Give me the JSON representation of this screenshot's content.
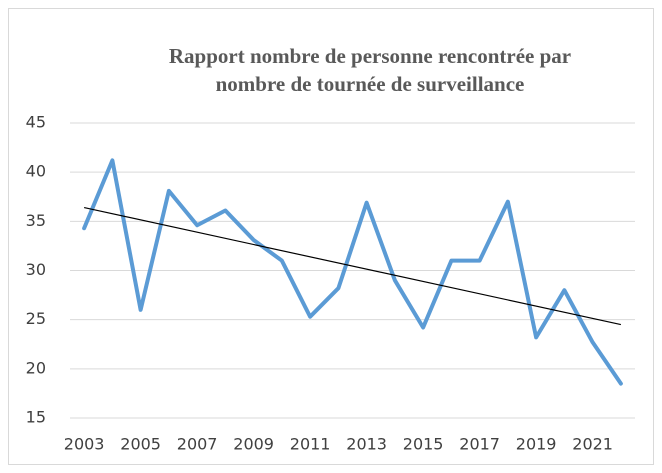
{
  "chart_data": {
    "type": "line",
    "title": [
      "Rapport nombre de personne rencontrée par",
      "nombre de tournée de surveillance"
    ],
    "categories": [
      "2003",
      null,
      "2005",
      null,
      "2007",
      null,
      "2009",
      null,
      "2011",
      null,
      "2013",
      null,
      "2015",
      null,
      "2017",
      null,
      "2019",
      null,
      "2021",
      null
    ],
    "series": [
      {
        "color": "#5b9bd5",
        "values": [
          34.3,
          41.2,
          26,
          38.1,
          34.6,
          36.1,
          33.1,
          31,
          25.3,
          28.2,
          36.9,
          29,
          24.2,
          31,
          31,
          37,
          23.2,
          28,
          22.7,
          18.5
        ]
      }
    ],
    "trendline": {
      "color": "#000000",
      "values": [
        36.4,
        24.5
      ]
    },
    "ylim": [
      15,
      45
    ],
    "yticks": [
      15,
      20,
      25,
      30,
      35,
      40,
      45
    ],
    "grid": true
  }
}
